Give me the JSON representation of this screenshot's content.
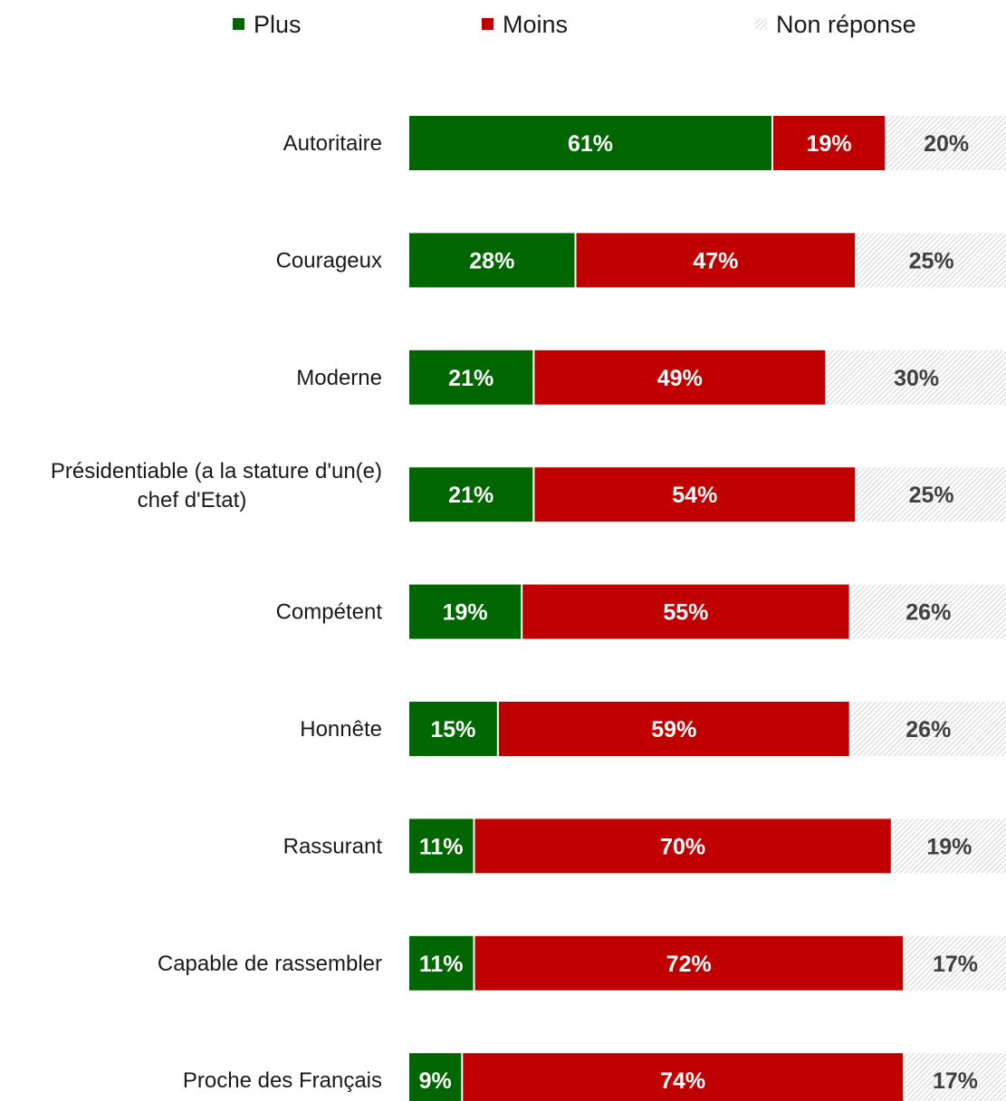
{
  "colors": {
    "plus": "#006600",
    "moins": "#C00000",
    "non_reponse_stripe": "#bfbfbf",
    "label_on_dark": "#ffffff",
    "label_on_light": "#404040"
  },
  "chart_data": {
    "type": "bar",
    "orientation": "horizontal",
    "stacked": true,
    "normalized_percent": true,
    "legend_position": "top",
    "grid": false,
    "xlim": [
      0,
      100
    ],
    "categories": [
      "Autoritaire",
      "Courageux",
      "Moderne",
      "Présidentiable (a la stature d'un(e) chef d'Etat)",
      "Compétent",
      "Honnête",
      "Rassurant",
      "Capable de rassembler",
      "Proche des Français"
    ],
    "category_lines": [
      [
        "Autoritaire"
      ],
      [
        "Courageux"
      ],
      [
        "Moderne"
      ],
      [
        "Présidentiable (a la stature d'un(e)",
        "chef d'Etat)"
      ],
      [
        "Compétent"
      ],
      [
        "Honnête"
      ],
      [
        "Rassurant"
      ],
      [
        "Capable de rassembler"
      ],
      [
        "Proche des Français"
      ]
    ],
    "series": [
      {
        "name": "Plus",
        "color": "#006600",
        "values": [
          61,
          28,
          21,
          21,
          19,
          15,
          11,
          11,
          9
        ],
        "labels": [
          "61%",
          "28%",
          "21%",
          "21%",
          "19%",
          "15%",
          "11%",
          "11%",
          "9%"
        ]
      },
      {
        "name": "Moins",
        "color": "#C00000",
        "values": [
          19,
          47,
          49,
          54,
          55,
          59,
          70,
          72,
          74
        ],
        "labels": [
          "19%",
          "47%",
          "49%",
          "54%",
          "55%",
          "59%",
          "70%",
          "72%",
          "74%"
        ]
      },
      {
        "name": "Non réponse",
        "color": "hatched-gray",
        "values": [
          20,
          25,
          30,
          25,
          26,
          26,
          19,
          17,
          17
        ],
        "labels": [
          "20%",
          "25%",
          "30%",
          "25%",
          "26%",
          "26%",
          "19%",
          "17%",
          "17%"
        ]
      }
    ]
  }
}
